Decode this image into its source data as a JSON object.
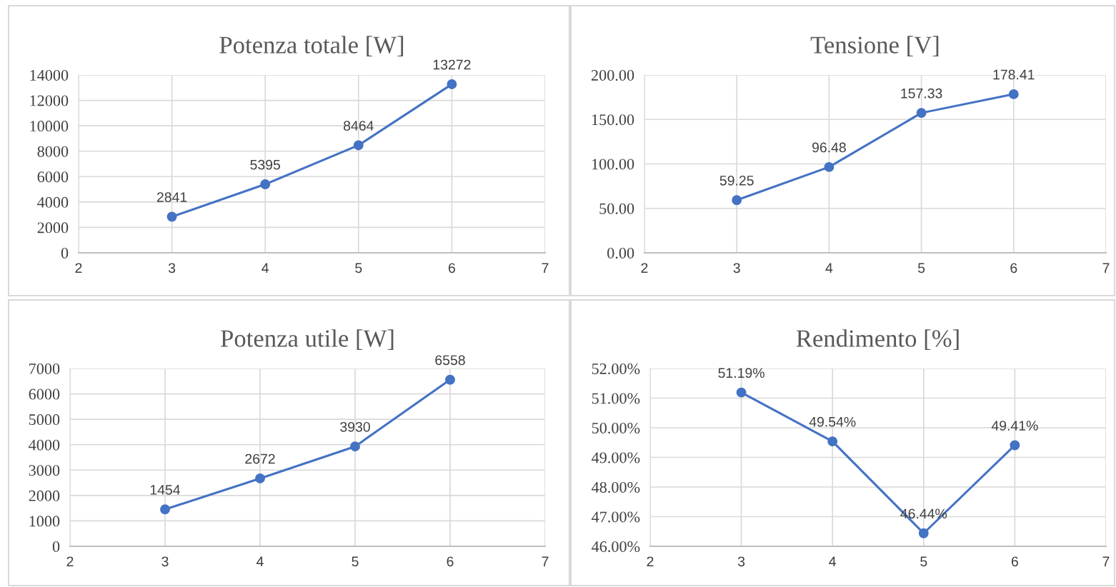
{
  "chart_data": [
    {
      "type": "line",
      "title": "Potenza totale [W]",
      "x": [
        3,
        4,
        5,
        6
      ],
      "series": [
        {
          "color": "#4472c4",
          "values": [
            2841,
            5395,
            8464,
            13272
          ]
        }
      ],
      "xlim": [
        2,
        7
      ],
      "xticks": [
        2,
        3,
        4,
        5,
        6,
        7
      ],
      "ylim": [
        0,
        14000
      ],
      "yticks": [
        0,
        2000,
        4000,
        6000,
        8000,
        10000,
        12000,
        14000
      ],
      "grid": true,
      "marker": "circle",
      "data_labels": true
    },
    {
      "type": "line",
      "title": "Tensione [V]",
      "x": [
        3,
        4,
        5,
        6
      ],
      "series": [
        {
          "color": "#4472c4",
          "values": [
            59.25,
            96.48,
            157.33,
            178.41
          ]
        }
      ],
      "xlim": [
        2,
        7
      ],
      "xticks": [
        2,
        3,
        4,
        5,
        6,
        7
      ],
      "ylim": [
        0,
        200
      ],
      "yticks": [
        {
          "value": 0,
          "label": "0.00"
        },
        {
          "value": 50,
          "label": "50.00"
        },
        {
          "value": 100,
          "label": "100.00"
        },
        {
          "value": 150,
          "label": "150.00"
        },
        {
          "value": 200,
          "label": "200.00"
        }
      ],
      "grid": true,
      "marker": "circle",
      "data_labels": true
    },
    {
      "type": "line",
      "title": "Potenza utile [W]",
      "x": [
        3,
        4,
        5,
        6
      ],
      "series": [
        {
          "color": "#4472c4",
          "values": [
            1454,
            2672,
            3930,
            6558
          ]
        }
      ],
      "xlim": [
        2,
        7
      ],
      "xticks": [
        2,
        3,
        4,
        5,
        6,
        7
      ],
      "ylim": [
        0,
        7000
      ],
      "yticks": [
        0,
        1000,
        2000,
        3000,
        4000,
        5000,
        6000,
        7000
      ],
      "grid": true,
      "marker": "circle",
      "data_labels": true
    },
    {
      "type": "line",
      "title": "Rendimento [%]",
      "x": [
        3,
        4,
        5,
        6
      ],
      "series": [
        {
          "color": "#4472c4",
          "values": [
            51.19,
            49.54,
            46.44,
            49.41
          ],
          "value_labels": [
            "51.19%",
            "49.54%",
            "46.44%",
            "49.41%"
          ]
        }
      ],
      "xlim": [
        2,
        7
      ],
      "xticks": [
        2,
        3,
        4,
        5,
        6,
        7
      ],
      "ylim": [
        46,
        52
      ],
      "yticks": [
        {
          "value": 46,
          "label": "46.00%"
        },
        {
          "value": 47,
          "label": "47.00%"
        },
        {
          "value": 48,
          "label": "48.00%"
        },
        {
          "value": 49,
          "label": "49.00%"
        },
        {
          "value": 50,
          "label": "50.00%"
        },
        {
          "value": 51,
          "label": "51.00%"
        },
        {
          "value": 52,
          "label": "52.00%"
        }
      ],
      "grid": true,
      "marker": "circle"
    }
  ]
}
